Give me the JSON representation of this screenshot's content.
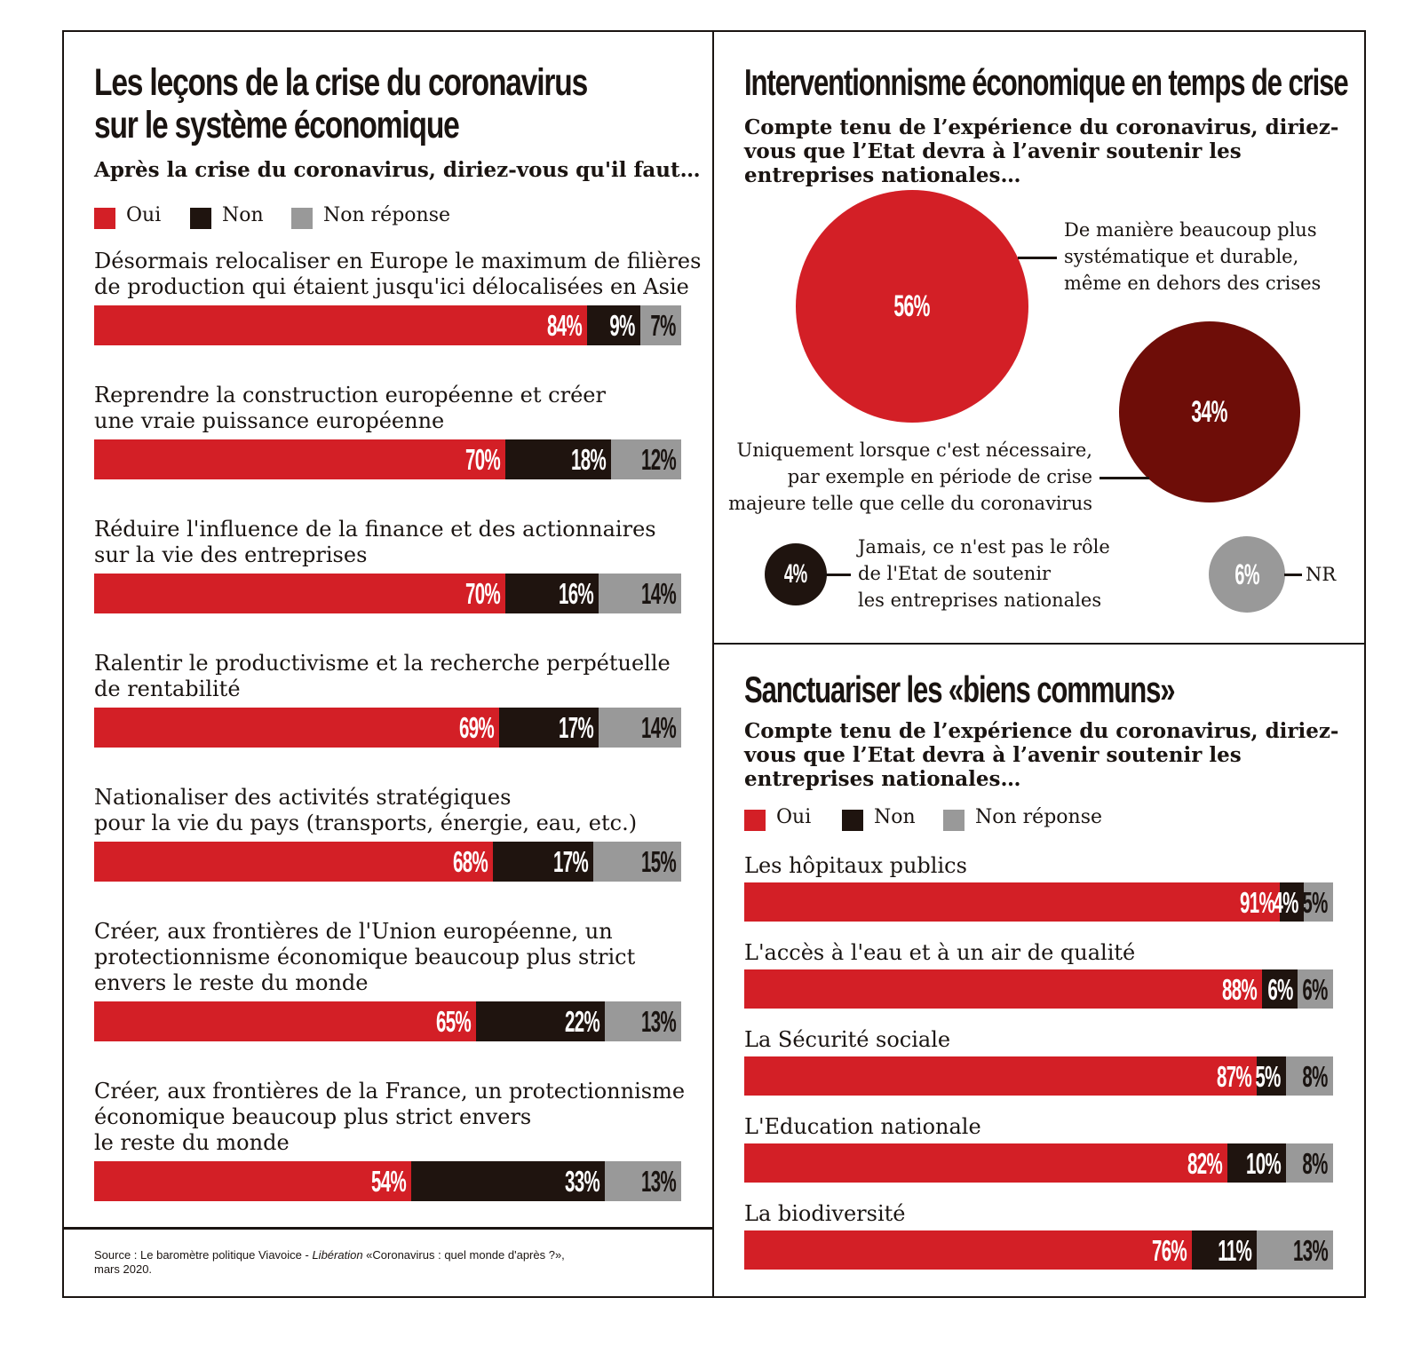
{
  "colors": {
    "oui": "#d31f26",
    "non": "#1f140f",
    "nr": "#999999",
    "dark_red": "#6e0d08",
    "text": "#1a1411"
  },
  "left": {
    "title_line1": "Les leçons de la crise du coronavirus",
    "title_line2": "sur le système économique",
    "subtitle": "Après la crise du coronavirus, diriez-vous qu'il faut…",
    "legend": {
      "oui": "Oui",
      "non": "Non",
      "nr": "Non réponse"
    },
    "source_prefix": "Source : Le baromètre politique Viavoice - ",
    "source_italic": "Libération",
    "source_suffix": " «Coronavirus : quel monde d'après ?»,",
    "source_line2": "mars 2020."
  },
  "right_top": {
    "title": "Interventionnisme économique en temps de crise",
    "subtitle": "Compte tenu de l’expérience du coronavirus, diriez-vous que l’Etat devra à l’avenir soutenir les entreprises nationales…"
  },
  "right_bottom": {
    "title": "Sanctuariser les «biens communs»",
    "subtitle": "Compte tenu de l’expérience du coronavirus, diriez-vous que l’Etat devra à l’avenir soutenir les entreprises nationales…",
    "legend": {
      "oui": "Oui",
      "non": "Non",
      "nr": "Non réponse"
    }
  },
  "chart_data": [
    {
      "type": "bar",
      "stacked": true,
      "orientation": "horizontal",
      "title": "Les leçons de la crise du coronavirus sur le système économique",
      "legend": [
        "Oui",
        "Non",
        "Non réponse"
      ],
      "categories": [
        [
          "Désormais relocaliser en Europe le maximum de filières",
          "de production qui étaient jusqu'ici délocalisées en Asie"
        ],
        [
          "Reprendre la construction européenne et créer",
          "une vraie puissance européenne"
        ],
        [
          "Réduire l'influence de la finance et des actionnaires",
          "sur la vie des entreprises"
        ],
        [
          "Ralentir le productivisme et la recherche perpétuelle",
          "de rentabilité"
        ],
        [
          "Nationaliser des activités stratégiques",
          "pour la vie du pays (transports, énergie, eau, etc.)"
        ],
        [
          "Créer, aux frontières de l'Union européenne, un",
          "protectionnisme économique beaucoup plus strict",
          "envers le reste du monde"
        ],
        [
          "Créer, aux frontières de la France, un protectionnisme",
          "économique beaucoup plus strict envers",
          "le reste du monde"
        ]
      ],
      "series": [
        {
          "name": "Oui",
          "values": [
            84,
            70,
            70,
            69,
            68,
            65,
            54
          ],
          "labels": [
            "84%",
            "70%",
            "70%",
            "69%",
            "68%",
            "65%",
            "54%"
          ]
        },
        {
          "name": "Non",
          "values": [
            9,
            18,
            16,
            17,
            17,
            22,
            33
          ],
          "labels": [
            "9%",
            "18%",
            "16%",
            "17%",
            "17%",
            "22%",
            "33%"
          ]
        },
        {
          "name": "Non réponse",
          "values": [
            7,
            12,
            14,
            14,
            15,
            13,
            13
          ],
          "labels": [
            "7%",
            "12%",
            "14%",
            "14%",
            "15%",
            "13%",
            "13%"
          ]
        }
      ],
      "xlim": [
        0,
        100
      ]
    },
    {
      "type": "bubble",
      "title": "Interventionnisme économique en temps de crise",
      "items": [
        {
          "label": [
            "De manière beaucoup plus",
            "systématique et durable,",
            "même en dehors des crises"
          ],
          "value": 56,
          "display": "56%"
        },
        {
          "label": [
            "Uniquement lorsque c'est nécessaire,",
            "par exemple en période de crise",
            "majeure telle que celle du coronavirus"
          ],
          "value": 34,
          "display": "34%"
        },
        {
          "label": [
            "Jamais, ce n'est pas le rôle",
            "de l'Etat de soutenir",
            "les entreprises nationales"
          ],
          "value": 4,
          "display": "4%"
        },
        {
          "label": [
            "NR"
          ],
          "value": 6,
          "display": "6%"
        }
      ]
    },
    {
      "type": "bar",
      "stacked": true,
      "orientation": "horizontal",
      "title": "Sanctuariser les «biens communs»",
      "legend": [
        "Oui",
        "Non",
        "Non réponse"
      ],
      "categories": [
        [
          "Les hôpitaux publics"
        ],
        [
          "L'accès à l'eau et à un air de qualité"
        ],
        [
          "La Sécurité sociale"
        ],
        [
          "L'Education nationale"
        ],
        [
          "La biodiversité"
        ]
      ],
      "series": [
        {
          "name": "Oui",
          "values": [
            91,
            88,
            87,
            82,
            76
          ],
          "labels": [
            "91%",
            "88%",
            "87%",
            "82%",
            "76%"
          ]
        },
        {
          "name": "Non",
          "values": [
            4,
            6,
            5,
            10,
            11
          ],
          "labels": [
            "4%",
            "6%",
            "5%",
            "10%",
            "11%"
          ]
        },
        {
          "name": "Non réponse",
          "values": [
            5,
            6,
            8,
            8,
            13
          ],
          "labels": [
            "5%",
            "6%",
            "8%",
            "8%",
            "13%"
          ]
        }
      ],
      "xlim": [
        0,
        100
      ]
    }
  ]
}
